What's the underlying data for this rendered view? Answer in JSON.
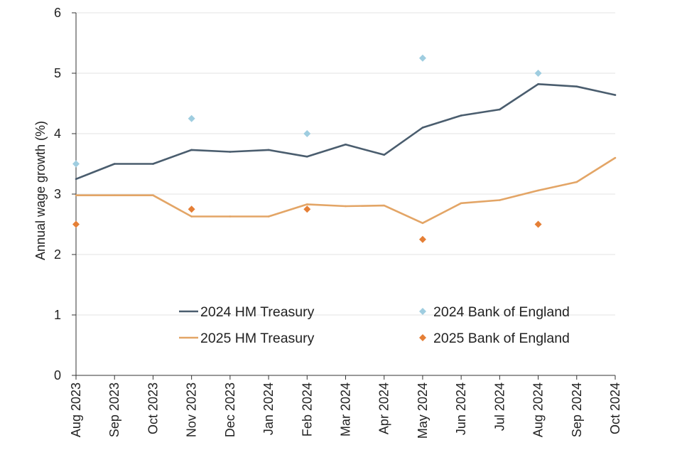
{
  "chart_data": {
    "type": "line",
    "title": "",
    "xlabel": "",
    "ylabel": "Annual wage growth (%)",
    "ylim": [
      0,
      6
    ],
    "yticks": [
      0,
      1,
      2,
      3,
      4,
      5,
      6
    ],
    "grid": true,
    "legend_position": "bottom-center",
    "categories": [
      "Aug 2023",
      "Sep 2023",
      "Oct 2023",
      "Nov 2023",
      "Dec 2023",
      "Jan 2024",
      "Feb 2024",
      "Mar 2024",
      "Apr 2024",
      "May 2024",
      "Jun 2024",
      "Jul 2024",
      "Aug 2024",
      "Sep 2024",
      "Oct 2024"
    ],
    "series": [
      {
        "name": "2024 HM Treasury",
        "kind": "line",
        "color": "#4a5d6e",
        "values": [
          3.25,
          3.5,
          3.5,
          3.73,
          3.7,
          3.73,
          3.62,
          3.82,
          3.65,
          4.1,
          4.3,
          4.4,
          4.82,
          4.78,
          4.64
        ]
      },
      {
        "name": "2025 HM Treasury",
        "kind": "line",
        "color": "#e3a566",
        "values": [
          2.98,
          2.98,
          2.98,
          2.63,
          2.63,
          2.63,
          2.83,
          2.8,
          2.81,
          2.52,
          2.85,
          2.9,
          3.06,
          3.2,
          3.6
        ]
      },
      {
        "name": "2024 Bank of England",
        "kind": "marker",
        "color": "#9fcde0",
        "points": [
          {
            "x": "Aug 2023",
            "y": 3.5
          },
          {
            "x": "Nov 2023",
            "y": 4.25
          },
          {
            "x": "Feb 2024",
            "y": 4.0
          },
          {
            "x": "May 2024",
            "y": 5.25
          },
          {
            "x": "Aug 2024",
            "y": 5.0
          }
        ]
      },
      {
        "name": "2025 Bank of England",
        "kind": "marker",
        "color": "#e57f36",
        "points": [
          {
            "x": "Aug 2023",
            "y": 2.5
          },
          {
            "x": "Nov 2023",
            "y": 2.75
          },
          {
            "x": "Feb 2024",
            "y": 2.75
          },
          {
            "x": "May 2024",
            "y": 2.25
          },
          {
            "x": "Aug 2024",
            "y": 2.5
          }
        ]
      }
    ],
    "legend": {
      "items": [
        {
          "label": "2024 HM Treasury",
          "series": 0
        },
        {
          "label": "2024 Bank of England",
          "series": 2
        },
        {
          "label": "2025 HM Treasury",
          "series": 1
        },
        {
          "label": "2025 Bank of England",
          "series": 3
        }
      ]
    }
  }
}
